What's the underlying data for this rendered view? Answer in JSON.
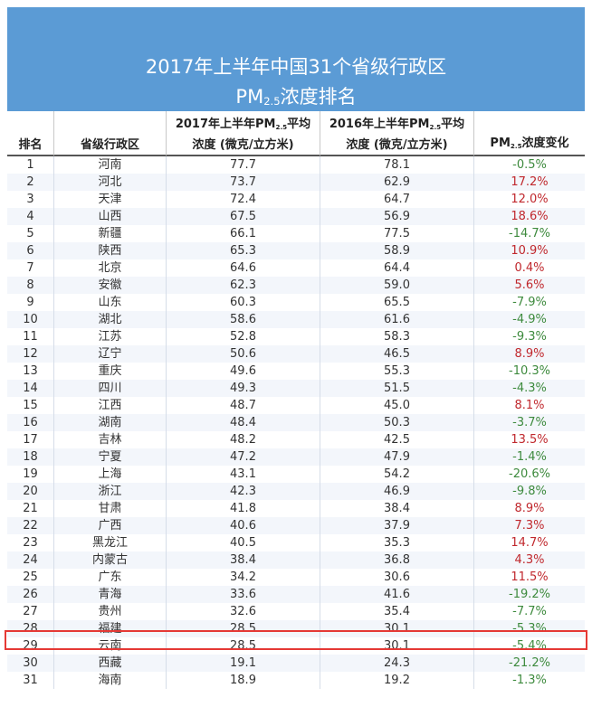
{
  "title": {
    "line1": "2017年上半年中国31个省级行政区",
    "line2_pre": "PM",
    "line2_sub": "2.5",
    "line2_post": "浓度排名"
  },
  "headers": {
    "rank": "排名",
    "province": "省级行政区",
    "h2017_a_pre": "2017年上半年PM",
    "h2017_a_sub": "2.5",
    "h2017_a_post": "平均",
    "h2017_b": "浓度 (微克/立方米)",
    "h2016_a_pre": "2016年上半年PM",
    "h2016_a_sub": "2.5",
    "h2016_a_post": "平均",
    "h2016_b": "浓度 (微克/立方米)",
    "change_pre": "PM",
    "change_sub": "2.5",
    "change_post": "浓度变化"
  },
  "rows": [
    {
      "rank": "1",
      "province": "河南",
      "v2017": "77.7",
      "v2016": "78.1",
      "change": "-0.5%"
    },
    {
      "rank": "2",
      "province": "河北",
      "v2017": "73.7",
      "v2016": "62.9",
      "change": "17.2%"
    },
    {
      "rank": "3",
      "province": "天津",
      "v2017": "72.4",
      "v2016": "64.7",
      "change": "12.0%"
    },
    {
      "rank": "4",
      "province": "山西",
      "v2017": "67.5",
      "v2016": "56.9",
      "change": "18.6%"
    },
    {
      "rank": "5",
      "province": "新疆",
      "v2017": "66.1",
      "v2016": "77.5",
      "change": "-14.7%"
    },
    {
      "rank": "6",
      "province": "陕西",
      "v2017": "65.3",
      "v2016": "58.9",
      "change": "10.9%"
    },
    {
      "rank": "7",
      "province": "北京",
      "v2017": "64.6",
      "v2016": "64.4",
      "change": "0.4%"
    },
    {
      "rank": "8",
      "province": "安徽",
      "v2017": "62.3",
      "v2016": "59.0",
      "change": "5.6%"
    },
    {
      "rank": "9",
      "province": "山东",
      "v2017": "60.3",
      "v2016": "65.5",
      "change": "-7.9%"
    },
    {
      "rank": "10",
      "province": "湖北",
      "v2017": "58.6",
      "v2016": "61.6",
      "change": "-4.9%"
    },
    {
      "rank": "11",
      "province": "江苏",
      "v2017": "52.8",
      "v2016": "58.3",
      "change": "-9.3%"
    },
    {
      "rank": "12",
      "province": "辽宁",
      "v2017": "50.6",
      "v2016": "46.5",
      "change": "8.9%"
    },
    {
      "rank": "13",
      "province": "重庆",
      "v2017": "49.6",
      "v2016": "55.3",
      "change": "-10.3%"
    },
    {
      "rank": "14",
      "province": "四川",
      "v2017": "49.3",
      "v2016": "51.5",
      "change": "-4.3%"
    },
    {
      "rank": "15",
      "province": "江西",
      "v2017": "48.7",
      "v2016": "45.0",
      "change": "8.1%"
    },
    {
      "rank": "16",
      "province": "湖南",
      "v2017": "48.4",
      "v2016": "50.3",
      "change": "-3.7%"
    },
    {
      "rank": "17",
      "province": "吉林",
      "v2017": "48.2",
      "v2016": "42.5",
      "change": "13.5%"
    },
    {
      "rank": "18",
      "province": "宁夏",
      "v2017": "47.2",
      "v2016": "47.9",
      "change": "-1.4%"
    },
    {
      "rank": "19",
      "province": "上海",
      "v2017": "43.1",
      "v2016": "54.2",
      "change": "-20.6%"
    },
    {
      "rank": "20",
      "province": "浙江",
      "v2017": "42.3",
      "v2016": "46.9",
      "change": "-9.8%"
    },
    {
      "rank": "21",
      "province": "甘肃",
      "v2017": "41.8",
      "v2016": "38.4",
      "change": "8.9%"
    },
    {
      "rank": "22",
      "province": "广西",
      "v2017": "40.6",
      "v2016": "37.9",
      "change": "7.3%"
    },
    {
      "rank": "23",
      "province": "黑龙江",
      "v2017": "40.5",
      "v2016": "35.3",
      "change": "14.7%"
    },
    {
      "rank": "24",
      "province": "内蒙古",
      "v2017": "38.4",
      "v2016": "36.8",
      "change": "4.3%"
    },
    {
      "rank": "25",
      "province": "广东",
      "v2017": "34.2",
      "v2016": "30.6",
      "change": "11.5%"
    },
    {
      "rank": "26",
      "province": "青海",
      "v2017": "33.6",
      "v2016": "41.6",
      "change": "-19.2%"
    },
    {
      "rank": "27",
      "province": "贵州",
      "v2017": "32.6",
      "v2016": "35.4",
      "change": "-7.7%"
    },
    {
      "rank": "28",
      "province": "福建",
      "v2017": "28.5",
      "v2016": "30.1",
      "change": "-5.3%"
    },
    {
      "rank": "29",
      "province": "云南",
      "v2017": "28.5",
      "v2016": "30.1",
      "change": "-5.4%"
    },
    {
      "rank": "30",
      "province": "西藏",
      "v2017": "19.1",
      "v2016": "24.3",
      "change": "-21.2%"
    },
    {
      "rank": "31",
      "province": "海南",
      "v2017": "18.9",
      "v2016": "19.2",
      "change": "-1.3%"
    }
  ],
  "highlighted_rank": "28",
  "colors": {
    "title_bg": "#5b9bd5",
    "increase": "#c0282d",
    "decrease": "#3d8a3d",
    "highlight": "#e53935"
  }
}
